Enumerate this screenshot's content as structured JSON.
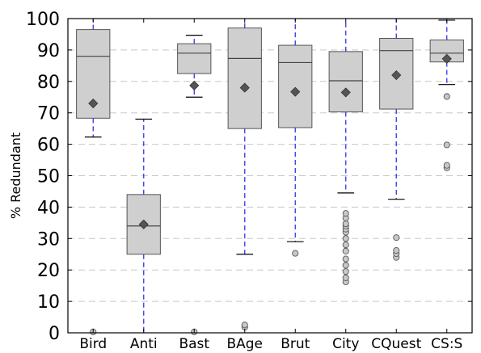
{
  "chart_data": {
    "type": "box",
    "title": "",
    "xlabel": "",
    "ylabel": "% Redundant",
    "ylim": [
      0,
      100
    ],
    "yticks": [
      "0",
      "10",
      "20",
      "30",
      "40",
      "50",
      "60",
      "70",
      "80",
      "90",
      "100"
    ],
    "grid": "horizontal-dashed",
    "categories": [
      "Bird",
      "Anti",
      "Bast",
      "BAge",
      "Brut",
      "City",
      "CQuest",
      "CS:S"
    ],
    "boxes": [
      {
        "whislo": 62.3,
        "q1": 68.3,
        "median": 88.0,
        "q3": 96.5,
        "whishi": 100,
        "mean": 73.0,
        "fliers": [
          0.3
        ]
      },
      {
        "whislo": 0,
        "q1": 25.0,
        "median": 34.0,
        "q3": 44.0,
        "whishi": 68.0,
        "mean": 34.5,
        "fliers": []
      },
      {
        "whislo": 75.0,
        "q1": 82.5,
        "median": 89.0,
        "q3": 92.0,
        "whishi": 94.7,
        "mean": 78.7,
        "fliers": [
          0.3
        ]
      },
      {
        "whislo": 25.0,
        "q1": 65.0,
        "median": 87.3,
        "q3": 97.0,
        "whishi": 100,
        "mean": 78.0,
        "fliers": [
          1.8,
          2.5
        ]
      },
      {
        "whislo": 29.0,
        "q1": 65.3,
        "median": 86.0,
        "q3": 91.5,
        "whishi": 100,
        "mean": 76.7,
        "fliers": [
          25.3
        ]
      },
      {
        "whislo": 44.5,
        "q1": 70.3,
        "median": 80.2,
        "q3": 89.5,
        "whishi": 100,
        "mean": 76.5,
        "fliers": [
          16.2,
          17.5,
          19.5,
          21.5,
          23.5,
          26.0,
          28.0,
          30.0,
          32.0,
          33.0,
          34.0,
          34.7,
          36.5,
          38.0
        ]
      },
      {
        "whislo": 42.5,
        "q1": 71.2,
        "median": 89.8,
        "q3": 93.7,
        "whishi": 100,
        "mean": 82.0,
        "fliers": [
          24.0,
          25.2,
          26.2,
          30.3
        ]
      },
      {
        "whislo": 79.0,
        "q1": 86.2,
        "median": 89.0,
        "q3": 93.2,
        "whishi": 99.5,
        "mean": 87.2,
        "fliers": [
          52.5,
          53.3,
          59.8,
          75.2
        ]
      }
    ]
  }
}
